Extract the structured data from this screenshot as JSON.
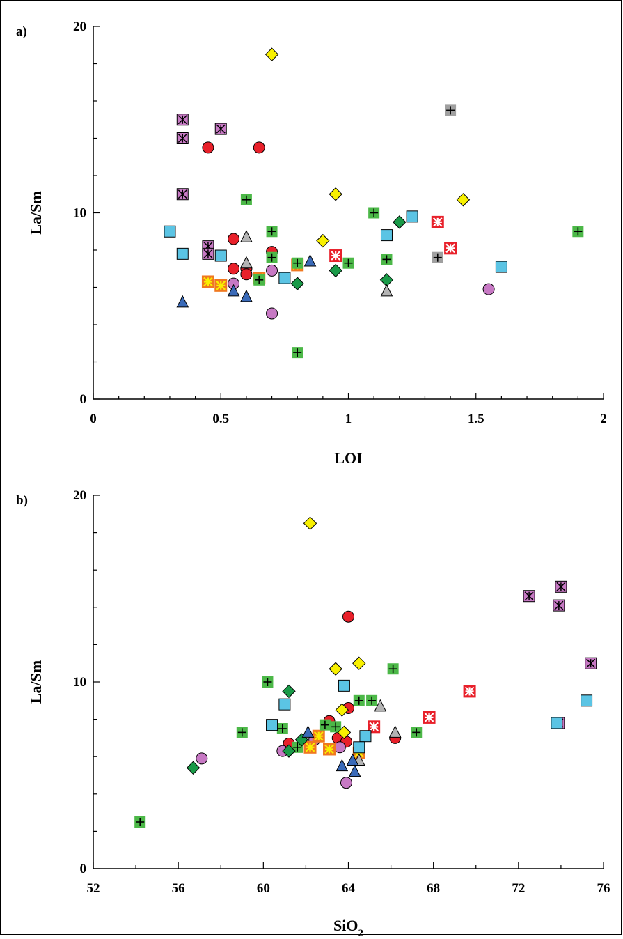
{
  "chart_data": [
    {
      "type": "scatter",
      "panel_label": "a)",
      "xlabel": "LOI",
      "ylabel": "La/Sm",
      "xlim": [
        0,
        2
      ],
      "ylim": [
        0,
        20
      ],
      "x_ticks": [
        "0",
        "0.5",
        "1",
        "1.5",
        "2"
      ],
      "y_ticks": [
        "0",
        "10",
        "20"
      ],
      "grid": false,
      "series": [
        {
          "marker": "circle",
          "fill": "#e8202a",
          "points": [
            [
              0.45,
              13.5
            ],
            [
              0.65,
              13.5
            ],
            [
              0.55,
              8.6
            ],
            [
              0.7,
              7.9
            ],
            [
              0.55,
              7.0
            ],
            [
              0.6,
              7.0
            ],
            [
              0.6,
              6.7
            ]
          ]
        },
        {
          "marker": "circle",
          "fill": "#c779c4",
          "points": [
            [
              0.55,
              6.2
            ],
            [
              0.7,
              6.9
            ],
            [
              0.7,
              4.6
            ],
            [
              1.55,
              5.9
            ]
          ]
        },
        {
          "marker": "square-star",
          "fill": "#c779c4",
          "points": [
            [
              0.35,
              15.0
            ],
            [
              0.35,
              14.0
            ],
            [
              0.5,
              14.5
            ],
            [
              0.35,
              11.0
            ],
            [
              0.45,
              8.2
            ],
            [
              0.45,
              7.8
            ]
          ]
        },
        {
          "marker": "square-asterisk",
          "fill": "#e8202a",
          "points": [
            [
              1.35,
              9.5
            ],
            [
              1.4,
              8.1
            ],
            [
              0.95,
              7.7
            ]
          ]
        },
        {
          "marker": "square-asterisk-yellow",
          "fill": "#f07820",
          "points": [
            [
              0.45,
              6.3
            ],
            [
              0.5,
              6.1
            ],
            [
              0.65,
              6.5
            ],
            [
              0.8,
              7.2
            ]
          ]
        },
        {
          "marker": "square-plus",
          "fill": "#4cb848",
          "points": [
            [
              0.6,
              10.7
            ],
            [
              1.1,
              10.0
            ],
            [
              0.7,
              9.0
            ],
            [
              1.9,
              9.0
            ],
            [
              0.7,
              7.6
            ],
            [
              1.15,
              7.5
            ],
            [
              0.8,
              7.3
            ],
            [
              1.0,
              7.3
            ],
            [
              0.65,
              6.4
            ],
            [
              0.8,
              2.5
            ]
          ]
        },
        {
          "marker": "square-plus",
          "fill": "#a0a0a0",
          "points": [
            [
              1.4,
              15.5
            ],
            [
              1.35,
              7.6
            ]
          ]
        },
        {
          "marker": "square",
          "fill": "#5bc4e4",
          "points": [
            [
              0.3,
              9.0
            ],
            [
              0.35,
              7.8
            ],
            [
              0.5,
              7.7
            ],
            [
              1.15,
              8.8
            ],
            [
              1.25,
              9.8
            ],
            [
              1.6,
              7.1
            ],
            [
              0.75,
              6.5
            ]
          ]
        },
        {
          "marker": "diamond",
          "fill": "#f8f000",
          "points": [
            [
              0.7,
              18.5
            ],
            [
              0.95,
              11.0
            ],
            [
              1.45,
              10.7
            ],
            [
              0.9,
              8.5
            ]
          ]
        },
        {
          "marker": "diamond",
          "fill": "#1a9a48",
          "points": [
            [
              1.2,
              9.5
            ],
            [
              0.95,
              6.9
            ],
            [
              0.8,
              6.2
            ],
            [
              1.15,
              6.4
            ]
          ]
        },
        {
          "marker": "triangle",
          "fill": "#b4b4b4",
          "points": [
            [
              0.6,
              8.7
            ],
            [
              0.6,
              7.3
            ],
            [
              1.15,
              5.8
            ]
          ]
        },
        {
          "marker": "triangle",
          "fill": "#3a6ab8",
          "points": [
            [
              0.35,
              5.2
            ],
            [
              0.55,
              5.8
            ],
            [
              0.6,
              5.5
            ],
            [
              0.85,
              7.4
            ]
          ]
        }
      ]
    },
    {
      "type": "scatter",
      "panel_label": "b)",
      "xlabel": "SiO",
      "xlabel_subscript": "2",
      "ylabel": "La/Sm",
      "xlim": [
        52,
        76
      ],
      "ylim": [
        0,
        20
      ],
      "x_ticks": [
        "52",
        "56",
        "60",
        "64",
        "68",
        "72",
        "76"
      ],
      "y_ticks": [
        "0",
        "10",
        "20"
      ],
      "grid": false,
      "series": [
        {
          "marker": "circle",
          "fill": "#e8202a",
          "points": [
            [
              64.0,
              13.5
            ],
            [
              64.0,
              8.6
            ],
            [
              63.1,
              7.9
            ],
            [
              66.2,
              7.0
            ],
            [
              63.5,
              7.0
            ],
            [
              63.9,
              6.8
            ],
            [
              61.2,
              6.7
            ]
          ]
        },
        {
          "marker": "circle",
          "fill": "#c779c4",
          "points": [
            [
              57.1,
              5.9
            ],
            [
              60.9,
              6.3
            ],
            [
              62.4,
              6.9
            ],
            [
              63.2,
              6.4
            ],
            [
              63.6,
              6.5
            ],
            [
              63.9,
              4.6
            ]
          ]
        },
        {
          "marker": "square-star",
          "fill": "#c779c4",
          "points": [
            [
              72.5,
              14.6
            ],
            [
              73.9,
              14.1
            ],
            [
              74.0,
              15.1
            ],
            [
              75.4,
              11.0
            ],
            [
              73.9,
              7.8
            ]
          ]
        },
        {
          "marker": "square-asterisk",
          "fill": "#e8202a",
          "points": [
            [
              69.7,
              9.5
            ],
            [
              67.8,
              8.1
            ],
            [
              65.2,
              7.6
            ]
          ]
        },
        {
          "marker": "square-asterisk-yellow",
          "fill": "#f07820",
          "points": [
            [
              62.2,
              6.5
            ],
            [
              63.1,
              6.4
            ],
            [
              64.5,
              6.2
            ],
            [
              62.6,
              7.1
            ]
          ]
        },
        {
          "marker": "square-plus",
          "fill": "#4cb848",
          "points": [
            [
              54.2,
              2.5
            ],
            [
              59.0,
              7.3
            ],
            [
              60.2,
              10.0
            ],
            [
              60.9,
              7.5
            ],
            [
              61.6,
              6.5
            ],
            [
              62.9,
              7.7
            ],
            [
              63.4,
              7.6
            ],
            [
              64.5,
              9.0
            ],
            [
              65.1,
              9.0
            ],
            [
              66.1,
              10.7
            ],
            [
              67.2,
              7.3
            ]
          ]
        },
        {
          "marker": "square",
          "fill": "#5bc4e4",
          "points": [
            [
              60.4,
              7.7
            ],
            [
              61.0,
              8.8
            ],
            [
              63.8,
              9.8
            ],
            [
              64.8,
              7.1
            ],
            [
              64.5,
              6.5
            ],
            [
              73.8,
              7.8
            ],
            [
              75.2,
              9.0
            ]
          ]
        },
        {
          "marker": "diamond",
          "fill": "#f8f000",
          "points": [
            [
              62.2,
              18.5
            ],
            [
              63.4,
              10.7
            ],
            [
              64.5,
              11.0
            ],
            [
              63.7,
              8.5
            ],
            [
              63.8,
              7.3
            ]
          ]
        },
        {
          "marker": "diamond",
          "fill": "#1a9a48",
          "points": [
            [
              56.7,
              5.4
            ],
            [
              61.2,
              9.5
            ],
            [
              61.2,
              6.3
            ],
            [
              61.8,
              6.9
            ]
          ]
        },
        {
          "marker": "triangle",
          "fill": "#b4b4b4",
          "points": [
            [
              65.5,
              8.7
            ],
            [
              66.2,
              7.3
            ],
            [
              64.5,
              5.8
            ]
          ]
        },
        {
          "marker": "triangle",
          "fill": "#3a6ab8",
          "points": [
            [
              62.1,
              7.3
            ],
            [
              63.7,
              5.5
            ],
            [
              64.2,
              5.8
            ],
            [
              64.3,
              5.2
            ]
          ]
        }
      ]
    }
  ]
}
